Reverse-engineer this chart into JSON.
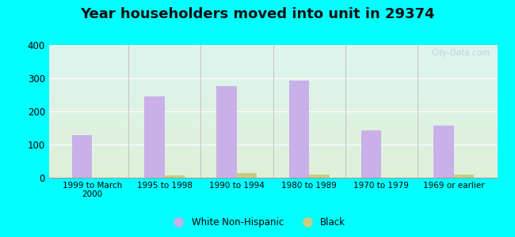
{
  "title": "Year householders moved into unit in 29374",
  "categories": [
    "1999 to March\n2000",
    "1995 to 1998",
    "1990 to 1994",
    "1980 to 1989",
    "1970 to 1979",
    "1969 or earlier"
  ],
  "white_values": [
    128,
    245,
    277,
    292,
    143,
    158
  ],
  "black_values": [
    0,
    7,
    15,
    10,
    0,
    10
  ],
  "white_color": "#c9b0e8",
  "black_color": "#c8cc82",
  "ylim": [
    0,
    400
  ],
  "yticks": [
    0,
    100,
    200,
    300,
    400
  ],
  "background_top": "#ddf5f0",
  "background_bottom": "#dff0d8",
  "outer_background": "#00ffff",
  "title_fontsize": 13,
  "bar_width": 0.28,
  "watermark_text": "City-Data.com"
}
